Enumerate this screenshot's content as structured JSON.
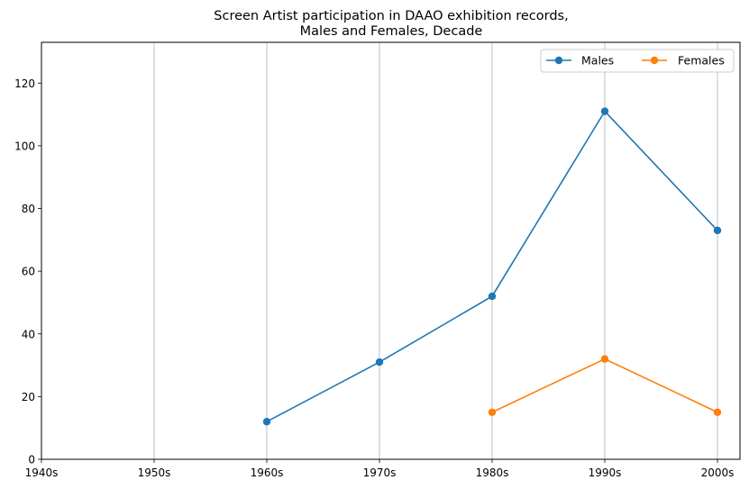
{
  "chart_data": {
    "type": "line",
    "title_lines": [
      "Screen Artist participation in DAAO exhibition records,",
      "Males and Females, Decade"
    ],
    "xlabel": "",
    "ylabel": "",
    "categories": [
      "1940s",
      "1950s",
      "1960s",
      "1970s",
      "1980s",
      "1990s",
      "2000s"
    ],
    "ylim": [
      0,
      133
    ],
    "yticks": [
      0,
      20,
      40,
      60,
      80,
      100,
      120
    ],
    "grid": "x-axis vertical lines",
    "legend_position": "top-right",
    "series": [
      {
        "name": "Males",
        "color": "#1f77b4",
        "values": [
          null,
          null,
          12,
          31,
          52,
          111,
          73
        ]
      },
      {
        "name": "Females",
        "color": "#ff7f0e",
        "values": [
          null,
          null,
          null,
          null,
          15,
          32,
          15
        ]
      }
    ]
  }
}
